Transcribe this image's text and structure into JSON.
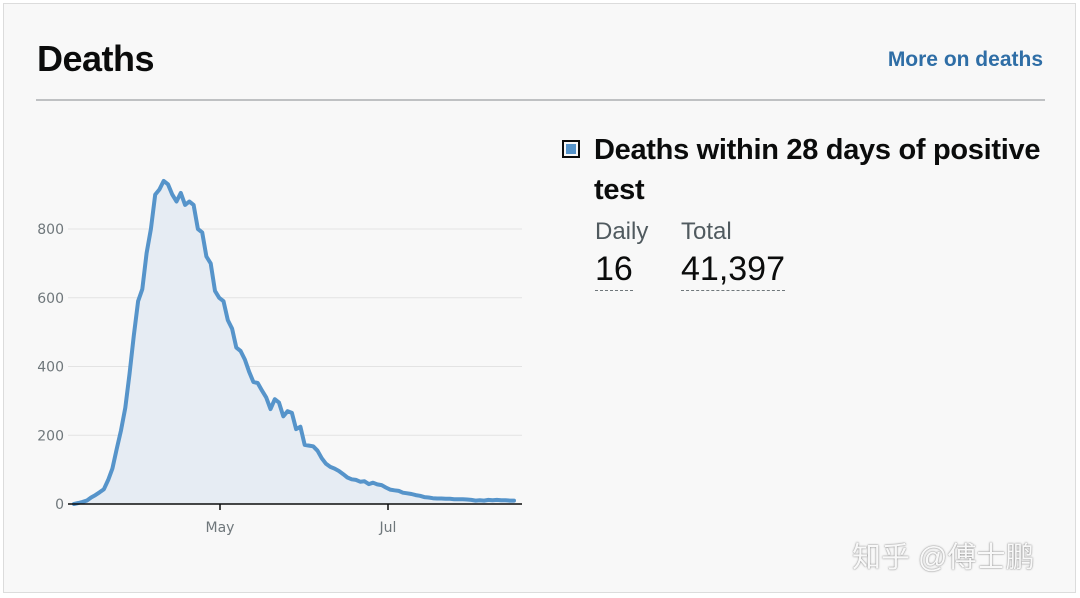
{
  "header": {
    "title": "Deaths",
    "more_link": "More on deaths"
  },
  "legend": {
    "label": "Deaths within 28 days of positive test",
    "swatch_color": "#5694ca"
  },
  "stats": {
    "daily_label": "Daily",
    "daily_value": "16",
    "total_label": "Total",
    "total_value": "41,397"
  },
  "watermark": "知乎 @傅士鹏",
  "chart_data": {
    "type": "area",
    "series": [
      {
        "color": "#5694ca",
        "fill": "#e6ecf3",
        "values": [
          0,
          3,
          6,
          10,
          19,
          26,
          34,
          43,
          70,
          103,
          160,
          214,
          280,
          378,
          490,
          590,
          625,
          730,
          800,
          900,
          915,
          940,
          930,
          900,
          880,
          905,
          870,
          880,
          870,
          800,
          790,
          720,
          700,
          620,
          600,
          590,
          535,
          510,
          455,
          445,
          420,
          385,
          355,
          352,
          330,
          310,
          276,
          305,
          295,
          255,
          270,
          265,
          218,
          225,
          172,
          170,
          168,
          155,
          133,
          117,
          108,
          103,
          96,
          87,
          77,
          72,
          70,
          65,
          66,
          58,
          62,
          57,
          55,
          48,
          42,
          40,
          38,
          33,
          31,
          29,
          26,
          24,
          20,
          19,
          17,
          16,
          16,
          15,
          15,
          14,
          14,
          14,
          13,
          12,
          10,
          11,
          10,
          12,
          11,
          12,
          11,
          11,
          10,
          10
        ]
      }
    ],
    "x_tick_labels": [
      "May",
      "Jul"
    ],
    "y_ticks": [
      0,
      200,
      400,
      600,
      800
    ],
    "ylim": [
      0,
      1000
    ],
    "grid": true
  }
}
